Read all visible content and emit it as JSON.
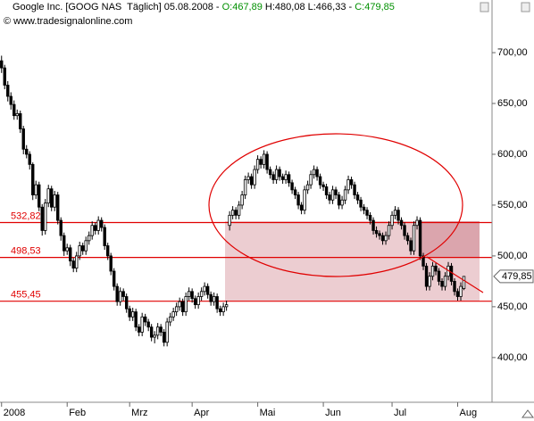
{
  "header": {
    "name": "Google Inc. [GOOG NAS  Täglich] 05.08.2008 - ",
    "open": "O:467,89",
    "hl": " H:480,08 L:466,33 - ",
    "close": "C:479,85",
    "watermark": "© www.tradesignalonline.com"
  },
  "chart_data": {
    "type": "candlestick",
    "ylim": [
      356,
      736
    ],
    "xlim": [
      -0.5,
      157
    ],
    "yticks": [
      {
        "value": 400,
        "label": "400,00"
      },
      {
        "value": 450,
        "label": "450,00"
      },
      {
        "value": 500,
        "label": "500,00"
      },
      {
        "value": 550,
        "label": "550,00"
      },
      {
        "value": 600,
        "label": "600,00"
      },
      {
        "value": 650,
        "label": "650,00"
      },
      {
        "value": 700,
        "label": "700,00"
      }
    ],
    "xticks": [
      {
        "value": 0,
        "label": "2008"
      },
      {
        "value": 21,
        "label": "Feb"
      },
      {
        "value": 41,
        "label": "Mrz"
      },
      {
        "value": 61,
        "label": "Apr"
      },
      {
        "value": 82,
        "label": "Mai"
      },
      {
        "value": 103,
        "label": "Jun"
      },
      {
        "value": 125,
        "label": "Jul"
      },
      {
        "value": 146,
        "label": "Aug"
      }
    ],
    "candle_up": "#ffffff",
    "candle_down": "#000000",
    "line_color": "#e00000",
    "hlines": [
      {
        "value": 532.82,
        "label": "532,82"
      },
      {
        "value": 498.53,
        "label": "498,53"
      },
      {
        "value": 455.45,
        "label": "455,45"
      }
    ],
    "last_price": {
      "value": 479.85,
      "label": "479,85"
    },
    "ohlc": [
      [
        692,
        697,
        680,
        685
      ],
      [
        685,
        688,
        664,
        668
      ],
      [
        668,
        672,
        652,
        657
      ],
      [
        657,
        661,
        644,
        649
      ],
      [
        649,
        653,
        634,
        638
      ],
      [
        638,
        644,
        634,
        640
      ],
      [
        640,
        643,
        621,
        625
      ],
      [
        625,
        628,
        600,
        605
      ],
      [
        605,
        609,
        596,
        600
      ],
      [
        600,
        603,
        585,
        590
      ],
      [
        590,
        592,
        555,
        560
      ],
      [
        560,
        574,
        556,
        570
      ],
      [
        570,
        573,
        544,
        548
      ],
      [
        548,
        551,
        520,
        525
      ],
      [
        525,
        556,
        521,
        552
      ],
      [
        552,
        570,
        548,
        566
      ],
      [
        566,
        569,
        544,
        548
      ],
      [
        548,
        564,
        544,
        560
      ],
      [
        560,
        563,
        531,
        535
      ],
      [
        535,
        538,
        515,
        520
      ],
      [
        520,
        523,
        500,
        505
      ],
      [
        505,
        512,
        501,
        508
      ],
      [
        508,
        511,
        490,
        495
      ],
      [
        495,
        498,
        484,
        488
      ],
      [
        488,
        504,
        484,
        500
      ],
      [
        500,
        514,
        496,
        510
      ],
      [
        510,
        513,
        501,
        505
      ],
      [
        505,
        519,
        501,
        515
      ],
      [
        515,
        524,
        511,
        520
      ],
      [
        520,
        534,
        516,
        530
      ],
      [
        530,
        533,
        521,
        525
      ],
      [
        525,
        539,
        521,
        535
      ],
      [
        535,
        538,
        524,
        528
      ],
      [
        528,
        531,
        506,
        510
      ],
      [
        510,
        513,
        496,
        500
      ],
      [
        500,
        503,
        481,
        485
      ],
      [
        485,
        488,
        466,
        470
      ],
      [
        470,
        473,
        451,
        455
      ],
      [
        455,
        469,
        451,
        465
      ],
      [
        465,
        468,
        456,
        460
      ],
      [
        460,
        463,
        444,
        448
      ],
      [
        448,
        451,
        436,
        440
      ],
      [
        440,
        449,
        436,
        445
      ],
      [
        445,
        448,
        426,
        430
      ],
      [
        430,
        433,
        421,
        425
      ],
      [
        425,
        444,
        421,
        440
      ],
      [
        440,
        443,
        431,
        435
      ],
      [
        435,
        438,
        426,
        430
      ],
      [
        430,
        433,
        416,
        420
      ],
      [
        420,
        426,
        414,
        422
      ],
      [
        422,
        434,
        418,
        430
      ],
      [
        430,
        433,
        421,
        425
      ],
      [
        425,
        428,
        411,
        415
      ],
      [
        415,
        439,
        411,
        435
      ],
      [
        435,
        444,
        431,
        440
      ],
      [
        440,
        449,
        436,
        445
      ],
      [
        445,
        454,
        441,
        450
      ],
      [
        450,
        459,
        446,
        455
      ],
      [
        455,
        458,
        441,
        445
      ],
      [
        445,
        464,
        441,
        460
      ],
      [
        460,
        469,
        456,
        465
      ],
      [
        465,
        468,
        454,
        458
      ],
      [
        458,
        461,
        448,
        452
      ],
      [
        452,
        464,
        448,
        460
      ],
      [
        460,
        469,
        456,
        465
      ],
      [
        465,
        474,
        461,
        470
      ],
      [
        470,
        473,
        458,
        462
      ],
      [
        462,
        465,
        451,
        455
      ],
      [
        455,
        464,
        451,
        460
      ],
      [
        460,
        463,
        444,
        448
      ],
      [
        448,
        451,
        441,
        445
      ],
      [
        445,
        454,
        441,
        450
      ],
      [
        450,
        456,
        446,
        452
      ],
      [
        530,
        544,
        525,
        540
      ],
      [
        540,
        549,
        536,
        545
      ],
      [
        545,
        548,
        536,
        540
      ],
      [
        540,
        554,
        536,
        550
      ],
      [
        550,
        564,
        546,
        560
      ],
      [
        560,
        579,
        556,
        575
      ],
      [
        575,
        582,
        571,
        578
      ],
      [
        578,
        581,
        566,
        570
      ],
      [
        570,
        589,
        566,
        585
      ],
      [
        585,
        599,
        581,
        595
      ],
      [
        595,
        598,
        586,
        590
      ],
      [
        590,
        604,
        586,
        600
      ],
      [
        600,
        603,
        581,
        585
      ],
      [
        585,
        588,
        576,
        580
      ],
      [
        580,
        583,
        571,
        575
      ],
      [
        575,
        589,
        571,
        585
      ],
      [
        585,
        588,
        574,
        578
      ],
      [
        578,
        581,
        571,
        575
      ],
      [
        575,
        584,
        571,
        580
      ],
      [
        580,
        583,
        568,
        572
      ],
      [
        572,
        575,
        561,
        565
      ],
      [
        565,
        568,
        556,
        560
      ],
      [
        560,
        563,
        546,
        550
      ],
      [
        550,
        553,
        541,
        545
      ],
      [
        545,
        569,
        541,
        565
      ],
      [
        565,
        574,
        561,
        570
      ],
      [
        570,
        584,
        566,
        580
      ],
      [
        580,
        589,
        576,
        585
      ],
      [
        585,
        588,
        574,
        578
      ],
      [
        578,
        581,
        566,
        570
      ],
      [
        570,
        573,
        564,
        568
      ],
      [
        568,
        571,
        556,
        560
      ],
      [
        560,
        563,
        551,
        555
      ],
      [
        555,
        569,
        551,
        565
      ],
      [
        565,
        568,
        556,
        560
      ],
      [
        560,
        563,
        546,
        550
      ],
      [
        550,
        559,
        546,
        555
      ],
      [
        555,
        569,
        551,
        565
      ],
      [
        565,
        579,
        561,
        575
      ],
      [
        575,
        578,
        566,
        570
      ],
      [
        570,
        573,
        556,
        560
      ],
      [
        560,
        563,
        551,
        555
      ],
      [
        555,
        558,
        544,
        548
      ],
      [
        548,
        551,
        541,
        545
      ],
      [
        545,
        548,
        536,
        540
      ],
      [
        540,
        543,
        531,
        535
      ],
      [
        535,
        538,
        521,
        525
      ],
      [
        525,
        529,
        518,
        522
      ],
      [
        522,
        525,
        516,
        520
      ],
      [
        520,
        523,
        511,
        515
      ],
      [
        515,
        524,
        511,
        520
      ],
      [
        520,
        534,
        516,
        530
      ],
      [
        530,
        544,
        526,
        540
      ],
      [
        540,
        549,
        536,
        545
      ],
      [
        545,
        548,
        531,
        535
      ],
      [
        535,
        538,
        526,
        530
      ],
      [
        530,
        533,
        516,
        520
      ],
      [
        520,
        523,
        511,
        515
      ],
      [
        515,
        518,
        501,
        505
      ],
      [
        505,
        534,
        501,
        530
      ],
      [
        530,
        539,
        526,
        535
      ],
      [
        535,
        538,
        496,
        500
      ],
      [
        500,
        503,
        486,
        490
      ],
      [
        490,
        493,
        466,
        470
      ],
      [
        470,
        484,
        466,
        480
      ],
      [
        480,
        494,
        476,
        490
      ],
      [
        490,
        493,
        481,
        485
      ],
      [
        485,
        488,
        471,
        475
      ],
      [
        475,
        478,
        466,
        470
      ],
      [
        470,
        484,
        466,
        480
      ],
      [
        480,
        494,
        476,
        490
      ],
      [
        490,
        493,
        471,
        475
      ],
      [
        475,
        478,
        461,
        465
      ],
      [
        465,
        468,
        456,
        460
      ],
      [
        460,
        474,
        456,
        470
      ],
      [
        467.89,
        480.08,
        466.33,
        479.85
      ]
    ]
  }
}
